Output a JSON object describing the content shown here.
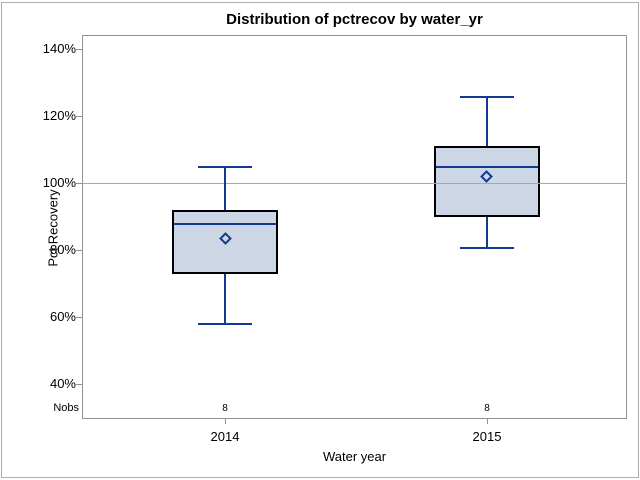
{
  "labels": {
    "nobs": "Nobs"
  },
  "colors": {
    "box_fill": "#ccd6e4",
    "box_border": "#000000",
    "line_navy": "#123a93",
    "reference_line": "#a8a8a8",
    "frame_border": "#8f949a",
    "outer_border": "#aaaeb3",
    "text": "#000000"
  },
  "chart_data": {
    "type": "box",
    "title": "Distribution of pctrecov by water_yr",
    "xlabel": "Water year",
    "ylabel": "Pct Recovery",
    "nobs_label": "Nobs",
    "categories": [
      "2014",
      "2015"
    ],
    "yticks": [
      40,
      60,
      80,
      100,
      120,
      140
    ],
    "ytick_labels": [
      "40%",
      "60%",
      "80%",
      "100%",
      "120%",
      "140%"
    ],
    "ylim": [
      30,
      144
    ],
    "reference_line": 100,
    "grid": false,
    "legend": null,
    "series": [
      {
        "category": "2014",
        "whisker_low": 58,
        "q1": 73,
        "median": 87.8,
        "q3": 92,
        "whisker_high": 104.8,
        "mean": 83.5,
        "nobs": 8
      },
      {
        "category": "2015",
        "whisker_low": 80.5,
        "q1": 90,
        "median": 104.8,
        "q3": 111,
        "whisker_high": 125.5,
        "mean": 102,
        "nobs": 8
      }
    ]
  }
}
